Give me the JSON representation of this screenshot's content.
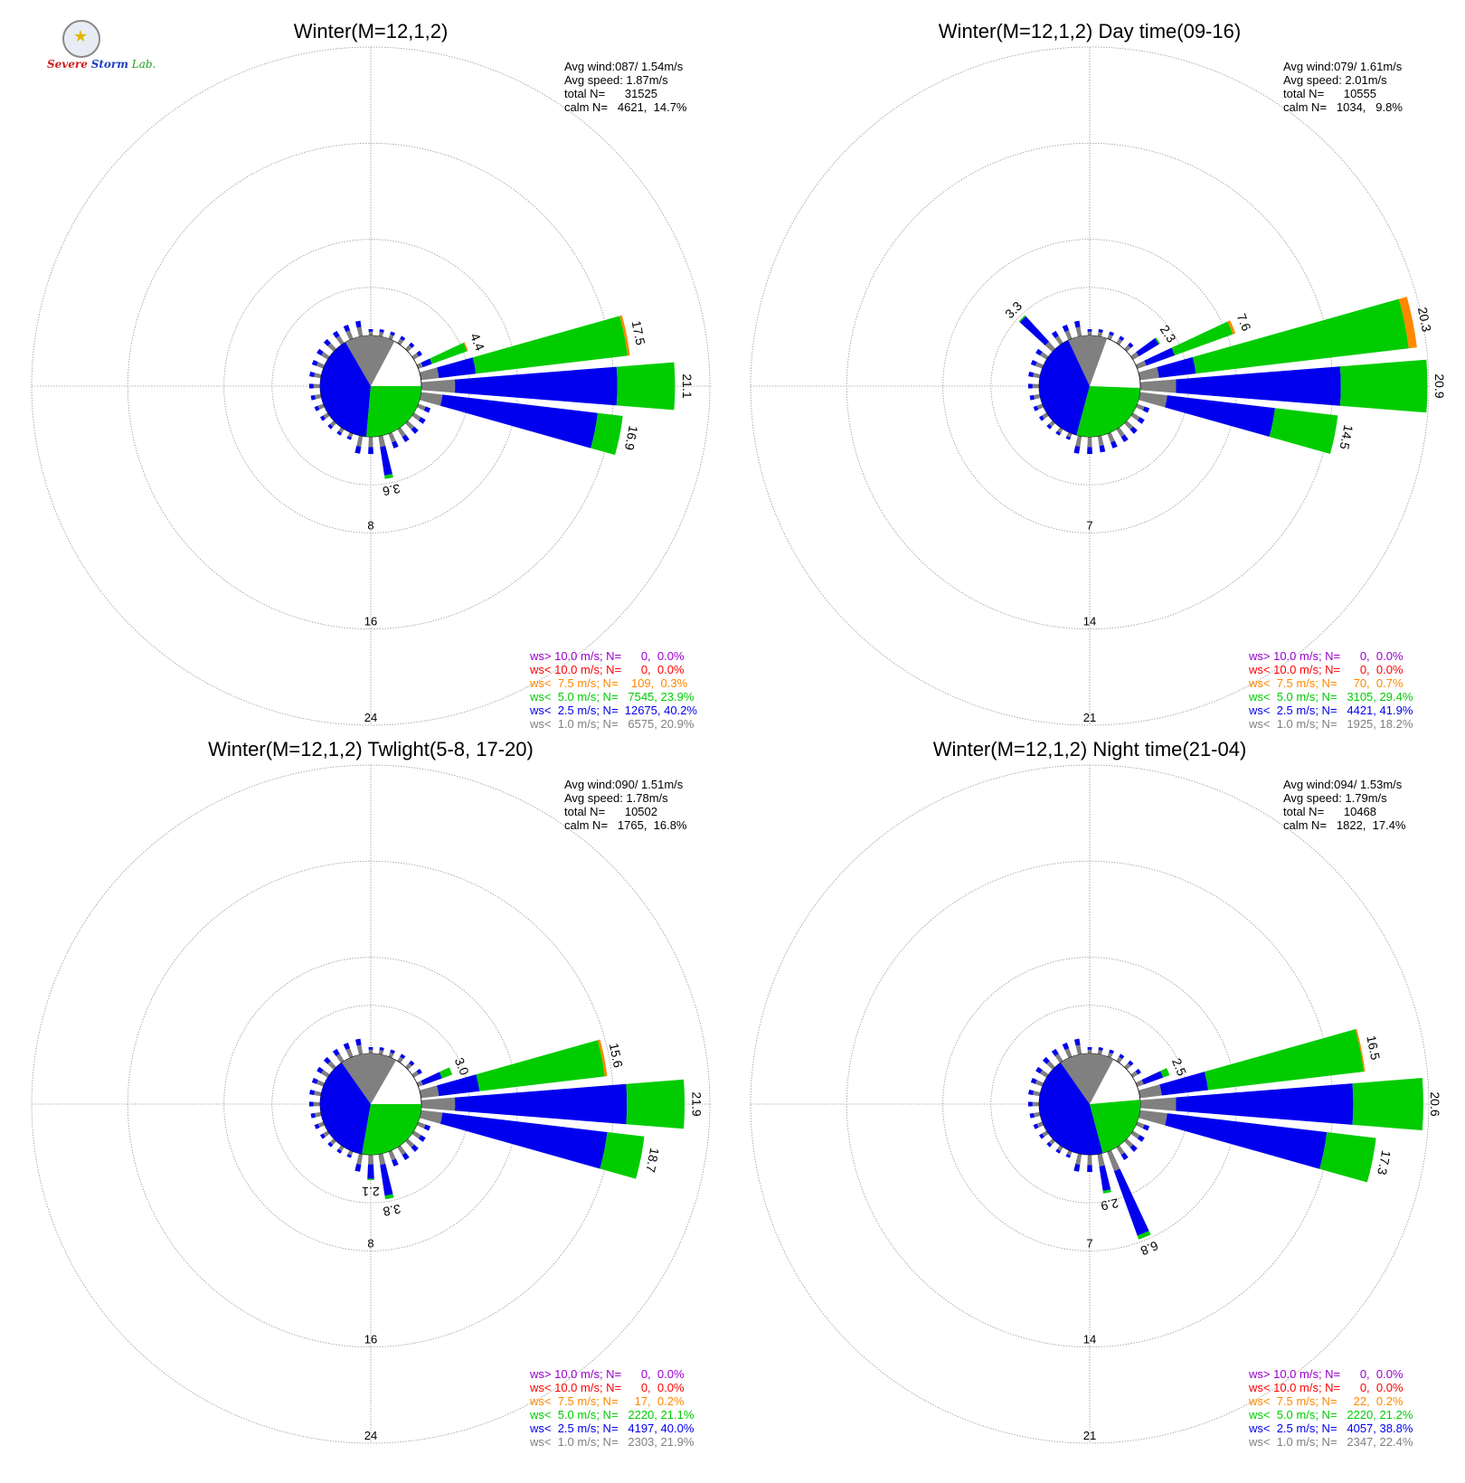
{
  "logo": {
    "part1": "S",
    "part2": "evere",
    "part3": "Storm",
    "part4": "Lab."
  },
  "colors": {
    "calm": "#808080",
    "ws_lt_1": "#808080",
    "ws_lt_2_5": "#0000ee",
    "ws_lt_5": "#00cc00",
    "ws_lt_7_5": "#ff8800",
    "ws_lt_10": "#ff0000",
    "ws_gt_10": "#9900cc",
    "grid": "#9a9a9a"
  },
  "chart_data": [
    {
      "type": "wind_rose",
      "title": "Winter(M=12,1,2)",
      "summary": [
        "Avg wind:087/ 1.54m/s",
        "Avg speed: 1.87m/s",
        "total N=      31525",
        "calm N=   4621,  14.7%"
      ],
      "ring_labels": [
        "8",
        "16",
        "24"
      ],
      "ring_values": [
        8,
        16,
        24
      ],
      "rmax": 24,
      "calm_pie": [
        {
          "class": "ws_lt_1",
          "from": -30,
          "to": 28
        },
        {
          "class": "ws_lt_2_5",
          "from": 185,
          "to": 330
        },
        {
          "class": "ws_lt_5",
          "from": 90,
          "to": 185
        }
      ],
      "petals": [
        {
          "dir": 67.5,
          "total": 4.4,
          "label": "4.4",
          "bands": [
            0.4,
            1.2,
            4.3,
            4.4
          ]
        },
        {
          "dir": 78.75,
          "total": 17.5,
          "label": "17.5",
          "bands": [
            1.5,
            4.6,
            17.3,
            17.5
          ]
        },
        {
          "dir": 90,
          "total": 21.1,
          "label": "21.1",
          "bands": [
            2.8,
            16.3,
            21.1,
            21.1
          ]
        },
        {
          "dir": 101.25,
          "total": 16.9,
          "label": "16.9",
          "bands": [
            1.8,
            14.8,
            16.9,
            16.9
          ]
        },
        {
          "dir": 168.75,
          "total": 3.6,
          "label": "3.6",
          "bands": [
            0.9,
            3.3,
            3.6,
            3.6
          ]
        }
      ],
      "legend": [
        {
          "class": "ws_gt_10",
          "text": "ws> 10.0 m/s; N=      0,  0.0%"
        },
        {
          "class": "ws_lt_10",
          "text": "ws< 10.0 m/s; N=      0,  0.0%"
        },
        {
          "class": "ws_lt_7_5",
          "text": "ws<  7.5 m/s; N=    109,  0.3%"
        },
        {
          "class": "ws_lt_5",
          "text": "ws<  5.0 m/s; N=   7545, 23.9%"
        },
        {
          "class": "ws_lt_2_5",
          "text": "ws<  2.5 m/s; N=  12675, 40.2%"
        },
        {
          "class": "ws_lt_1",
          "text": "ws<  1.0 m/s; N=   6575, 20.9%"
        }
      ]
    },
    {
      "type": "wind_rose",
      "title": "Winter(M=12,1,2) Day time(09-16)",
      "summary": [
        "Avg wind:079/ 1.61m/s",
        "Avg speed: 2.01m/s",
        "total N=      10555",
        "calm N=   1034,   9.8%"
      ],
      "ring_labels": [
        "7",
        "14",
        "21"
      ],
      "ring_values": [
        7,
        14,
        21
      ],
      "rmax": 21,
      "calm_pie": [
        {
          "class": "ws_lt_1",
          "from": -25,
          "to": 20
        },
        {
          "class": "ws_lt_2_5",
          "from": 195,
          "to": 335
        },
        {
          "class": "ws_lt_5",
          "from": 92,
          "to": 195
        }
      ],
      "petals": [
        {
          "dir": 315,
          "total": 3.3,
          "label": "3.3",
          "bands": [
            0.7,
            3.2,
            3.3,
            3.3
          ]
        },
        {
          "dir": 56.25,
          "total": 2.3,
          "label": "2.3",
          "bands": [
            0.5,
            2.2,
            2.3,
            2.3
          ]
        },
        {
          "dir": 67.5,
          "total": 7.6,
          "label": "7.6",
          "bands": [
            0.7,
            2.9,
            7.4,
            7.6
          ]
        },
        {
          "dir": 78.75,
          "total": 20.3,
          "label": "20.3",
          "bands": [
            1.4,
            4.1,
            19.7,
            20.3
          ]
        },
        {
          "dir": 90,
          "total": 20.9,
          "label": "20.9",
          "bands": [
            2.6,
            14.6,
            20.9,
            20.9
          ]
        },
        {
          "dir": 101.25,
          "total": 14.5,
          "label": "14.5",
          "bands": [
            2.0,
            9.9,
            14.5,
            14.5
          ]
        }
      ],
      "legend": [
        {
          "class": "ws_gt_10",
          "text": "ws> 10.0 m/s; N=      0,  0.0%"
        },
        {
          "class": "ws_lt_10",
          "text": "ws< 10.0 m/s; N=      0,  0.0%"
        },
        {
          "class": "ws_lt_7_5",
          "text": "ws<  7.5 m/s; N=     70,  0.7%"
        },
        {
          "class": "ws_lt_5",
          "text": "ws<  5.0 m/s; N=   3105, 29.4%"
        },
        {
          "class": "ws_lt_2_5",
          "text": "ws<  2.5 m/s; N=   4421, 41.9%"
        },
        {
          "class": "ws_lt_1",
          "text": "ws<  1.0 m/s; N=   1925, 18.2%"
        }
      ]
    },
    {
      "type": "wind_rose",
      "title": "Winter(M=12,1,2) Twlight(5-8, 17-20)",
      "summary": [
        "Avg wind:090/ 1.51m/s",
        "Avg speed: 1.78m/s",
        "total N=      10502",
        "calm N=   1765,  16.8%"
      ],
      "ring_labels": [
        "8",
        "16",
        "24"
      ],
      "ring_values": [
        8,
        16,
        24
      ],
      "rmax": 24,
      "calm_pie": [
        {
          "class": "ws_lt_1",
          "from": -35,
          "to": 30
        },
        {
          "class": "ws_lt_2_5",
          "from": 190,
          "to": 325
        },
        {
          "class": "ws_lt_5",
          "from": 90,
          "to": 190
        }
      ],
      "petals": [
        {
          "dir": 67.5,
          "total": 3.0,
          "label": "3.0",
          "bands": [
            0.4,
            2.1,
            3.0,
            3.0
          ]
        },
        {
          "dir": 78.75,
          "total": 15.6,
          "label": "15.6",
          "bands": [
            1.5,
            4.9,
            15.4,
            15.6
          ]
        },
        {
          "dir": 90,
          "total": 21.9,
          "label": "21.9",
          "bands": [
            2.8,
            17.1,
            21.9,
            21.9
          ]
        },
        {
          "dir": 101.25,
          "total": 18.7,
          "label": "18.7",
          "bands": [
            1.8,
            15.6,
            18.7,
            18.7
          ]
        },
        {
          "dir": 168.75,
          "total": 3.8,
          "label": "3.8",
          "bands": [
            0.9,
            3.5,
            3.8,
            3.8
          ]
        },
        {
          "dir": 180,
          "total": 2.1,
          "label": "2.1",
          "bands": [
            0.8,
            2.0,
            2.1,
            2.1
          ]
        }
      ],
      "legend": [
        {
          "class": "ws_gt_10",
          "text": "ws> 10.0 m/s; N=      0,  0.0%"
        },
        {
          "class": "ws_lt_10",
          "text": "ws< 10.0 m/s; N=      0,  0.0%"
        },
        {
          "class": "ws_lt_7_5",
          "text": "ws<  7.5 m/s; N=     17,  0.2%"
        },
        {
          "class": "ws_lt_5",
          "text": "ws<  5.0 m/s; N=   2220, 21.1%"
        },
        {
          "class": "ws_lt_2_5",
          "text": "ws<  2.5 m/s; N=   4197, 40.0%"
        },
        {
          "class": "ws_lt_1",
          "text": "ws<  1.0 m/s; N=   2303, 21.9%"
        }
      ]
    },
    {
      "type": "wind_rose",
      "title": "Winter(M=12,1,2) Night time(21-04)",
      "summary": [
        "Avg wind:094/ 1.53m/s",
        "Avg speed: 1.79m/s",
        "total N=      10468",
        "calm N=   1822,  17.4%"
      ],
      "ring_labels": [
        "7",
        "14",
        "21"
      ],
      "ring_values": [
        7,
        14,
        21
      ],
      "rmax": 21,
      "calm_pie": [
        {
          "class": "ws_lt_1",
          "from": -35,
          "to": 28
        },
        {
          "class": "ws_lt_2_5",
          "from": 165,
          "to": 325
        },
        {
          "class": "ws_lt_5",
          "from": 85,
          "to": 165
        }
      ],
      "petals": [
        {
          "dir": 67.5,
          "total": 2.5,
          "label": "2.5",
          "bands": [
            0.5,
            2.0,
            2.5,
            2.5
          ]
        },
        {
          "dir": 78.75,
          "total": 16.5,
          "label": "16.5",
          "bands": [
            1.6,
            5.0,
            16.4,
            16.5
          ]
        },
        {
          "dir": 90,
          "total": 20.6,
          "label": "20.6",
          "bands": [
            2.6,
            15.5,
            20.6,
            20.6
          ]
        },
        {
          "dir": 101.25,
          "total": 17.3,
          "label": "17.3",
          "bands": [
            2.0,
            13.7,
            17.3,
            17.3
          ]
        },
        {
          "dir": 157.5,
          "total": 6.8,
          "label": "6.8",
          "bands": [
            1.5,
            6.5,
            6.8,
            6.8
          ]
        },
        {
          "dir": 168.75,
          "total": 2.9,
          "label": "2.9",
          "bands": [
            0.9,
            2.7,
            2.9,
            2.9
          ]
        }
      ],
      "legend": [
        {
          "class": "ws_gt_10",
          "text": "ws> 10.0 m/s; N=      0,  0.0%"
        },
        {
          "class": "ws_lt_10",
          "text": "ws< 10.0 m/s; N=      0,  0.0%"
        },
        {
          "class": "ws_lt_7_5",
          "text": "ws<  7.5 m/s; N=     22,  0.2%"
        },
        {
          "class": "ws_lt_5",
          "text": "ws<  5.0 m/s; N=   2220, 21.2%"
        },
        {
          "class": "ws_lt_2_5",
          "text": "ws<  2.5 m/s; N=   4057, 38.8%"
        },
        {
          "class": "ws_lt_1",
          "text": "ws<  1.0 m/s; N=   2347, 22.4%"
        }
      ]
    }
  ]
}
